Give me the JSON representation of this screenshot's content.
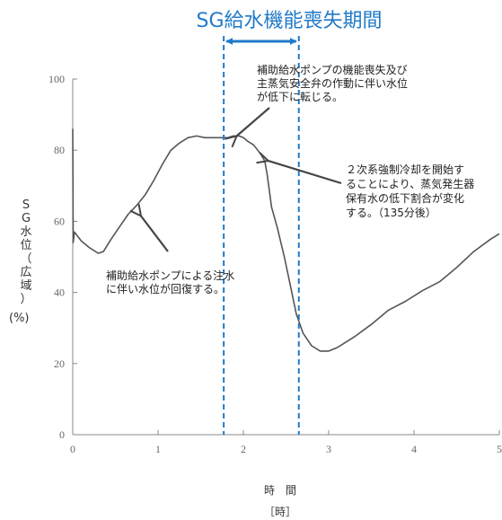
{
  "chart_data": {
    "type": "line",
    "title": "SG給水機能喪失期間",
    "ylabel_chars": [
      "S",
      "G",
      "水",
      "位",
      "（",
      "広",
      "域",
      "）"
    ],
    "yunit": "(%)",
    "xlabel": "時　間",
    "xunit": "［時］",
    "xlim": [
      0,
      5
    ],
    "ylim": [
      0,
      100
    ],
    "xticks": [
      "0",
      "1",
      "2",
      "3",
      "4",
      "5"
    ],
    "yticks": [
      "0",
      "20",
      "40",
      "60",
      "80",
      "100"
    ],
    "grid": false,
    "series": [
      {
        "x": [
          0,
          0.005,
          0.02,
          0.05,
          0.1,
          0.2,
          0.3,
          0.36,
          0.45,
          0.55,
          0.65,
          0.75,
          0.85,
          0.95,
          1.05,
          1.15,
          1.25,
          1.35,
          1.45,
          1.55,
          1.65,
          1.75,
          1.82,
          1.88,
          1.95,
          2.0,
          2.05,
          2.12,
          2.2,
          2.25,
          2.28,
          2.33,
          2.4,
          2.48,
          2.55,
          2.62,
          2.7,
          2.8,
          2.9,
          3.0,
          3.1,
          3.3,
          3.5,
          3.7,
          3.9,
          4.1,
          4.3,
          4.5,
          4.7,
          4.9,
          5.0
        ],
        "y": [
          86,
          54,
          57,
          56,
          54.5,
          52.5,
          51,
          51.5,
          55,
          58.5,
          62,
          64.5,
          67.5,
          71.5,
          76,
          80,
          82,
          83.5,
          84,
          83.5,
          83.5,
          83.5,
          83.5,
          84,
          84,
          83.5,
          82.5,
          81.5,
          79,
          77,
          73,
          64,
          58,
          50,
          42,
          34,
          28.5,
          25,
          23.5,
          23.5,
          24.5,
          27.5,
          31,
          35,
          37.5,
          40.5,
          43,
          47,
          51.5,
          55,
          56.5
        ]
      }
    ],
    "shaded_period": {
      "label": "SG給水機能喪失期間",
      "start": 1.77,
      "end": 2.65,
      "color": "#1f7ac9"
    },
    "annotations": [
      {
        "lines": [
          "補助給水ポンプの機能喪失及び",
          "主蒸気安全弁の作動に伴い水位",
          "が低下に転じる。"
        ],
        "point": [
          1.88,
          84
        ]
      },
      {
        "lines": [
          "２次系強制冷却を開始す",
          "ることにより、蒸気発生器",
          "保有水の低下割合が変化",
          "する。（135分後）"
        ],
        "point": [
          2.25,
          77
        ]
      },
      {
        "lines": [
          "補助給水ポンプによる注水",
          "に伴い水位が回復する。"
        ],
        "point": [
          0.8,
          62.5
        ]
      }
    ],
    "colors": {
      "line": "#555555",
      "axis": "#888888",
      "arrow": "#444444",
      "period": "#1f7ac9"
    }
  }
}
